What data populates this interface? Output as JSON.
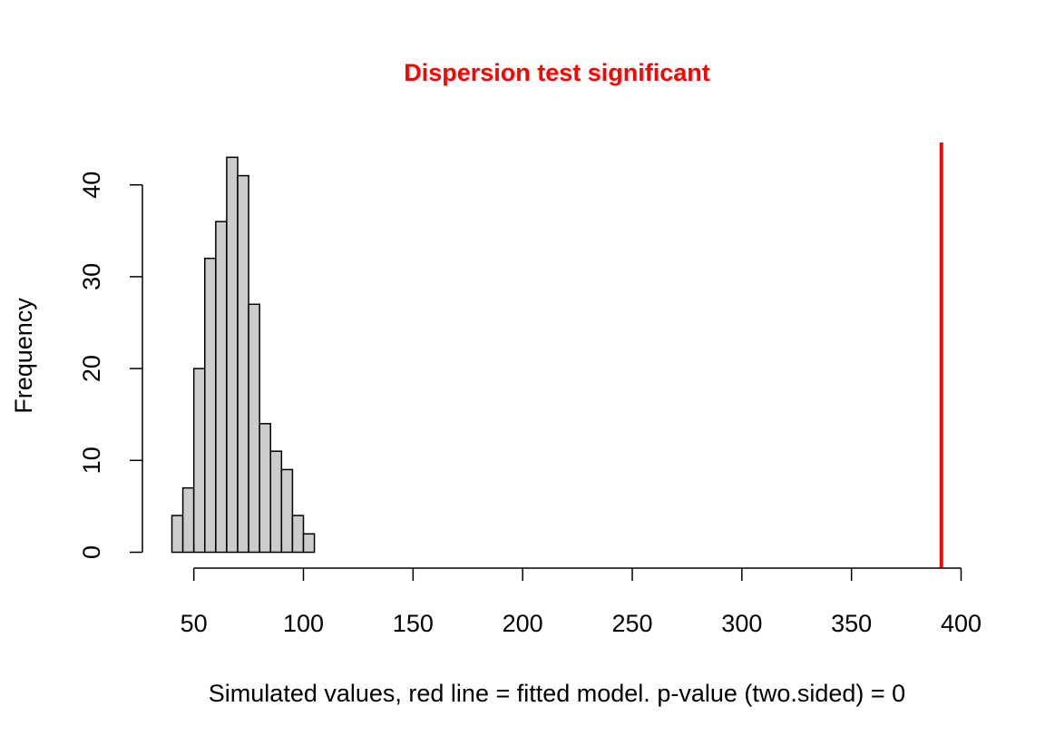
{
  "chart_data": {
    "type": "bar",
    "title": "Dispersion test significant",
    "title_color": "#FF0000",
    "xlabel": "Simulated values, red line = fitted model. p-value (two.sided) = 0",
    "ylabel": "Frequency",
    "xlim": [
      40,
      400
    ],
    "ylim": [
      0,
      43
    ],
    "x_ticks": [
      50,
      100,
      150,
      200,
      250,
      300,
      350,
      400
    ],
    "x_tick_labels": [
      "50",
      "100",
      "150",
      "200",
      "250",
      "300",
      "350",
      "400"
    ],
    "y_ticks": [
      0,
      10,
      20,
      30,
      40
    ],
    "y_tick_labels": [
      "0",
      "10",
      "20",
      "30",
      "40"
    ],
    "bin_width": 5,
    "bins": [
      {
        "start": 40,
        "end": 45,
        "count": 4
      },
      {
        "start": 45,
        "end": 50,
        "count": 7
      },
      {
        "start": 50,
        "end": 55,
        "count": 20
      },
      {
        "start": 55,
        "end": 60,
        "count": 32
      },
      {
        "start": 60,
        "end": 65,
        "count": 36
      },
      {
        "start": 65,
        "end": 70,
        "count": 43
      },
      {
        "start": 70,
        "end": 75,
        "count": 41
      },
      {
        "start": 75,
        "end": 80,
        "count": 27
      },
      {
        "start": 80,
        "end": 85,
        "count": 14
      },
      {
        "start": 85,
        "end": 90,
        "count": 11
      },
      {
        "start": 90,
        "end": 95,
        "count": 9
      },
      {
        "start": 95,
        "end": 100,
        "count": 4
      },
      {
        "start": 100,
        "end": 105,
        "count": 2
      }
    ],
    "bar_fill": "#CCCCCC",
    "bar_stroke": "#000000",
    "reference_line": {
      "x": 391,
      "color": "#FF0000"
    },
    "grid": false,
    "legend": "none"
  }
}
